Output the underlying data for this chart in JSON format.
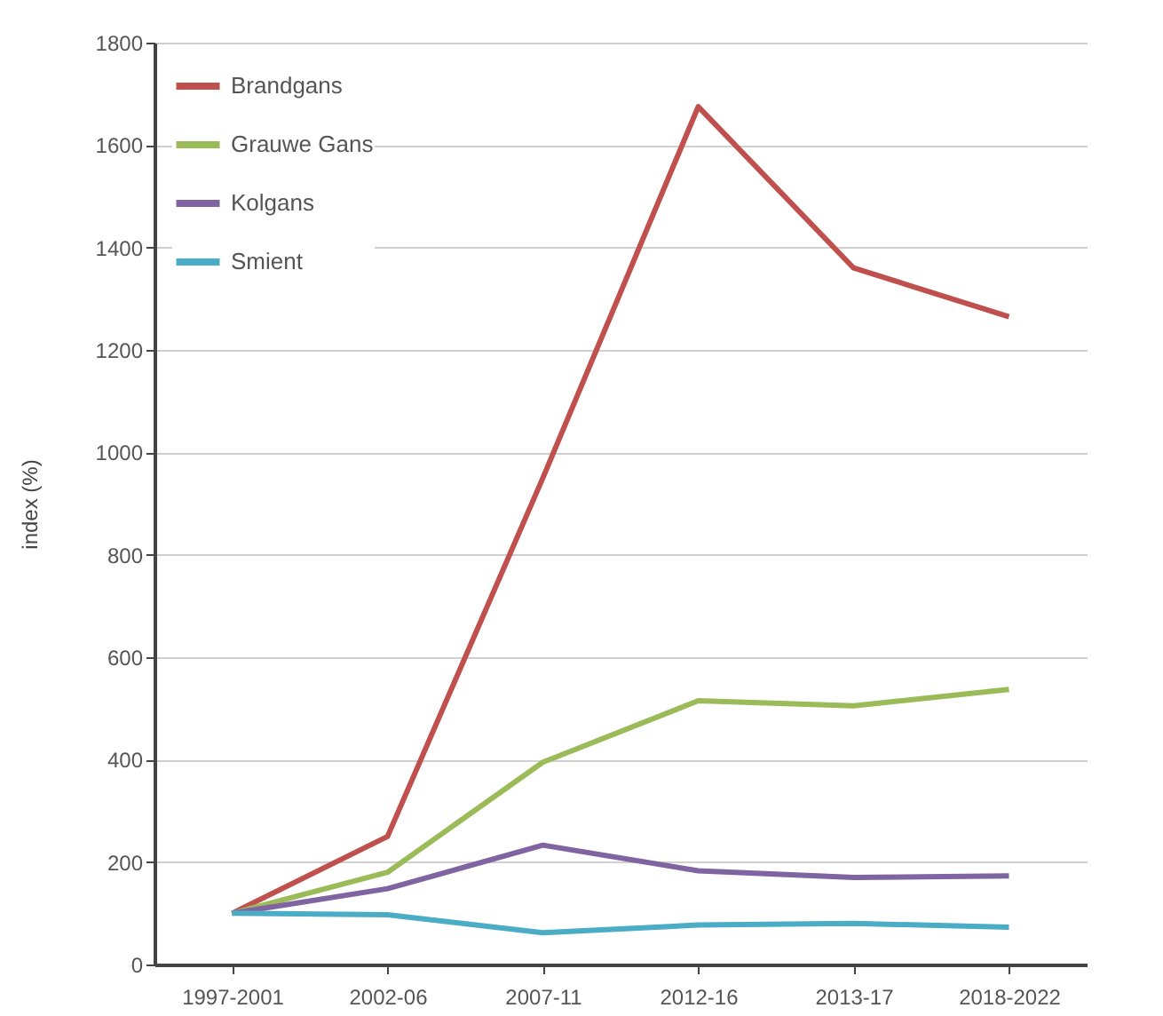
{
  "chart_data": {
    "type": "line",
    "ylabel": "index (%)",
    "categories": [
      "1997-2001",
      "2002-06",
      "2007-11",
      "2012-16",
      "2013-17",
      "2018-2022"
    ],
    "series": [
      {
        "name": "Brandgans",
        "color": "#c0504d",
        "values": [
          100,
          250,
          950,
          1675,
          1360,
          1265
        ]
      },
      {
        "name": "Grauwe Gans",
        "color": "#9bbb59",
        "values": [
          100,
          180,
          395,
          515,
          505,
          537
        ]
      },
      {
        "name": "Kolgans",
        "color": "#8064a2",
        "values": [
          100,
          148,
          233,
          183,
          170,
          173
        ]
      },
      {
        "name": "Smient",
        "color": "#4bacc6",
        "values": [
          100,
          97,
          62,
          77,
          80,
          73
        ]
      }
    ],
    "ylim": [
      0,
      1800
    ],
    "yticks": [
      0,
      200,
      400,
      600,
      800,
      1000,
      1200,
      1400,
      1600,
      1800
    ],
    "grid": "y",
    "legend": "top left"
  }
}
